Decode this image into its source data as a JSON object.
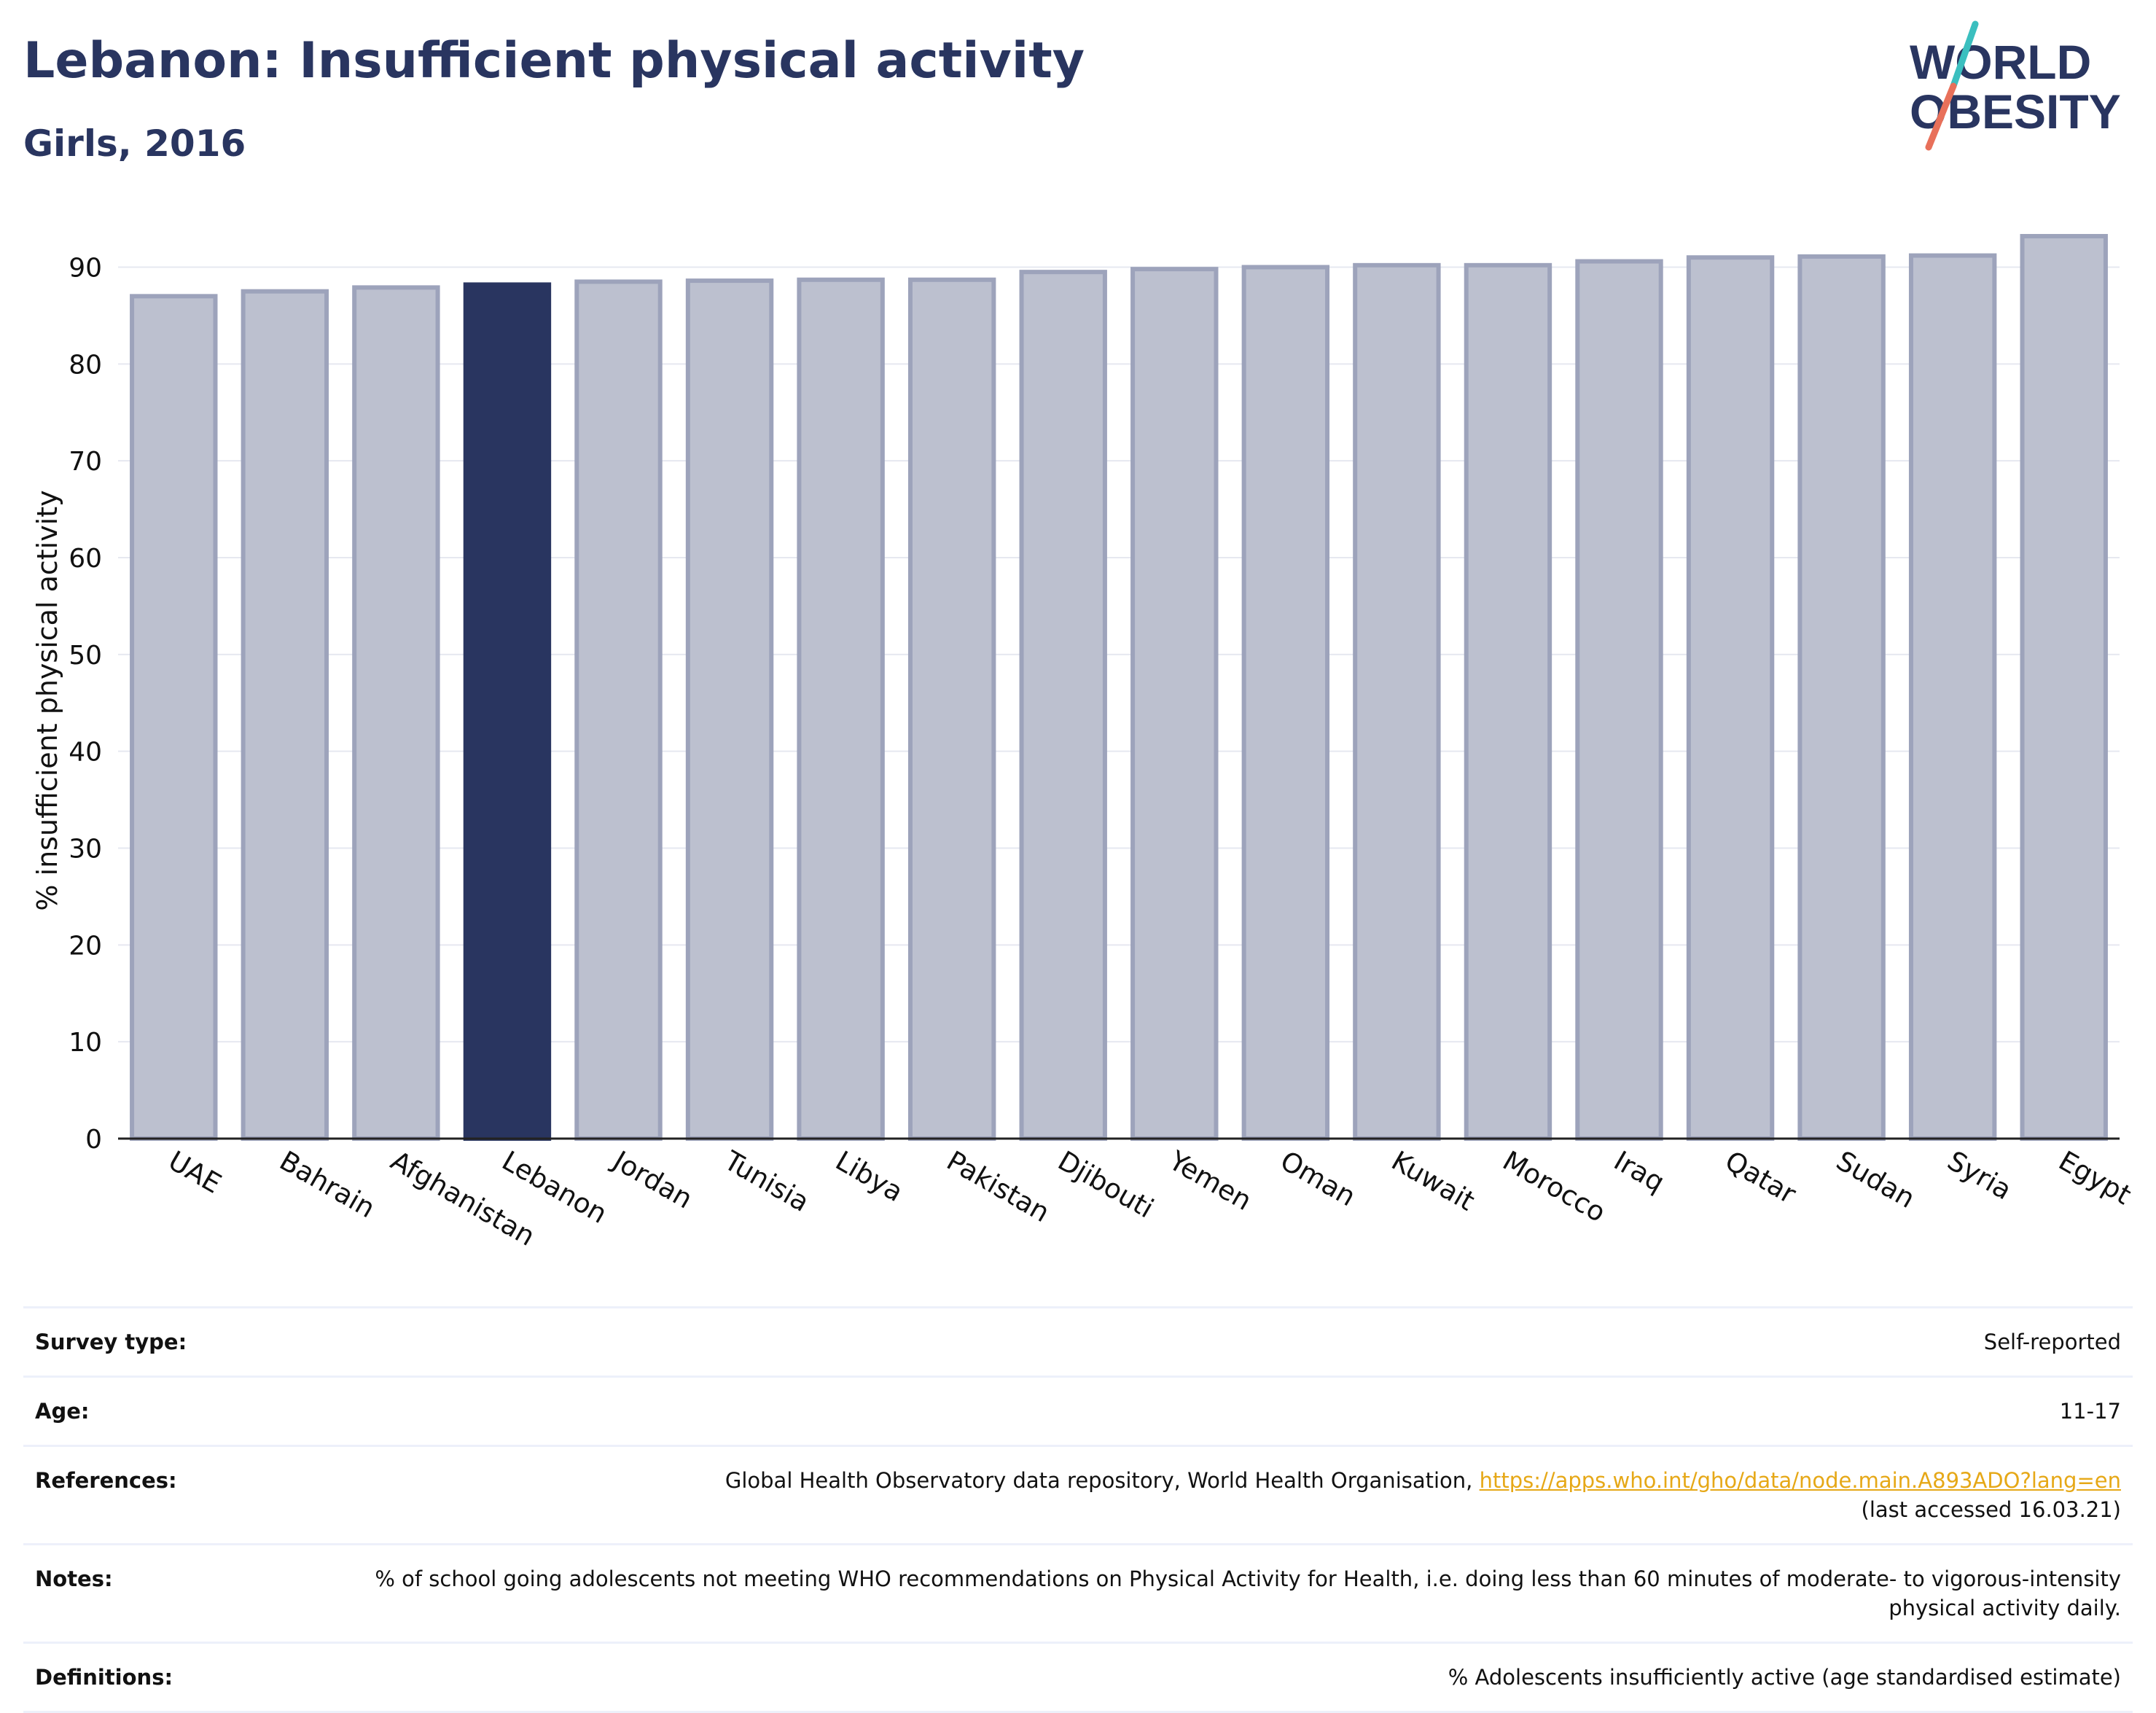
{
  "header": {
    "title": "Lebanon: Insufficient physical activity",
    "subtitle": "Girls, 2016"
  },
  "logo": {
    "line1": "WORLD",
    "line2": "OBESITY",
    "text_color": "#293560",
    "slash_top_color": "#3bbfbf",
    "slash_bottom_color": "#e8705a"
  },
  "chart_data": {
    "type": "bar",
    "ylabel": "% insufficient physical activity",
    "xlabel": "",
    "ylim": [
      0,
      93.5
    ],
    "yticks": [
      0,
      10,
      20,
      30,
      40,
      50,
      60,
      70,
      80,
      90
    ],
    "grid": true,
    "highlight": "Lebanon",
    "colors": {
      "bar": "#bcc0cf",
      "bar_border": "#9da3bb",
      "highlight": "#293560"
    },
    "categories": [
      "UAE",
      "Bahrain",
      "Afghanistan",
      "Lebanon",
      "Jordan",
      "Tunisia",
      "Libya",
      "Pakistan",
      "Djibouti",
      "Yemen",
      "Oman",
      "Kuwait",
      "Morocco",
      "Iraq",
      "Qatar",
      "Sudan",
      "Syria",
      "Egypt"
    ],
    "values": [
      87.0,
      87.5,
      87.9,
      88.2,
      88.5,
      88.6,
      88.7,
      88.7,
      89.5,
      89.8,
      90.0,
      90.2,
      90.2,
      90.6,
      91.0,
      91.1,
      91.2,
      93.2
    ]
  },
  "info": {
    "survey_type_label": "Survey type:",
    "survey_type_value": "Self-reported",
    "age_label": "Age:",
    "age_value": "11-17",
    "references_label": "References:",
    "references_text": "Global Health Observatory data repository, World Health Organisation, ",
    "references_link": "https://apps.who.int/gho/data/node.main.A893ADO?lang=en",
    "references_accessed": "(last accessed 16.03.21)",
    "notes_label": "Notes:",
    "notes_value": "% of school going adolescents not meeting WHO recommendations on Physical Activity for Health, i.e. doing less than 60 minutes of moderate- to vigorous-intensity physical activity daily.",
    "definitions_label": "Definitions:",
    "definitions_value": "% Adolescents insufficiently active (age standardised estimate)"
  }
}
